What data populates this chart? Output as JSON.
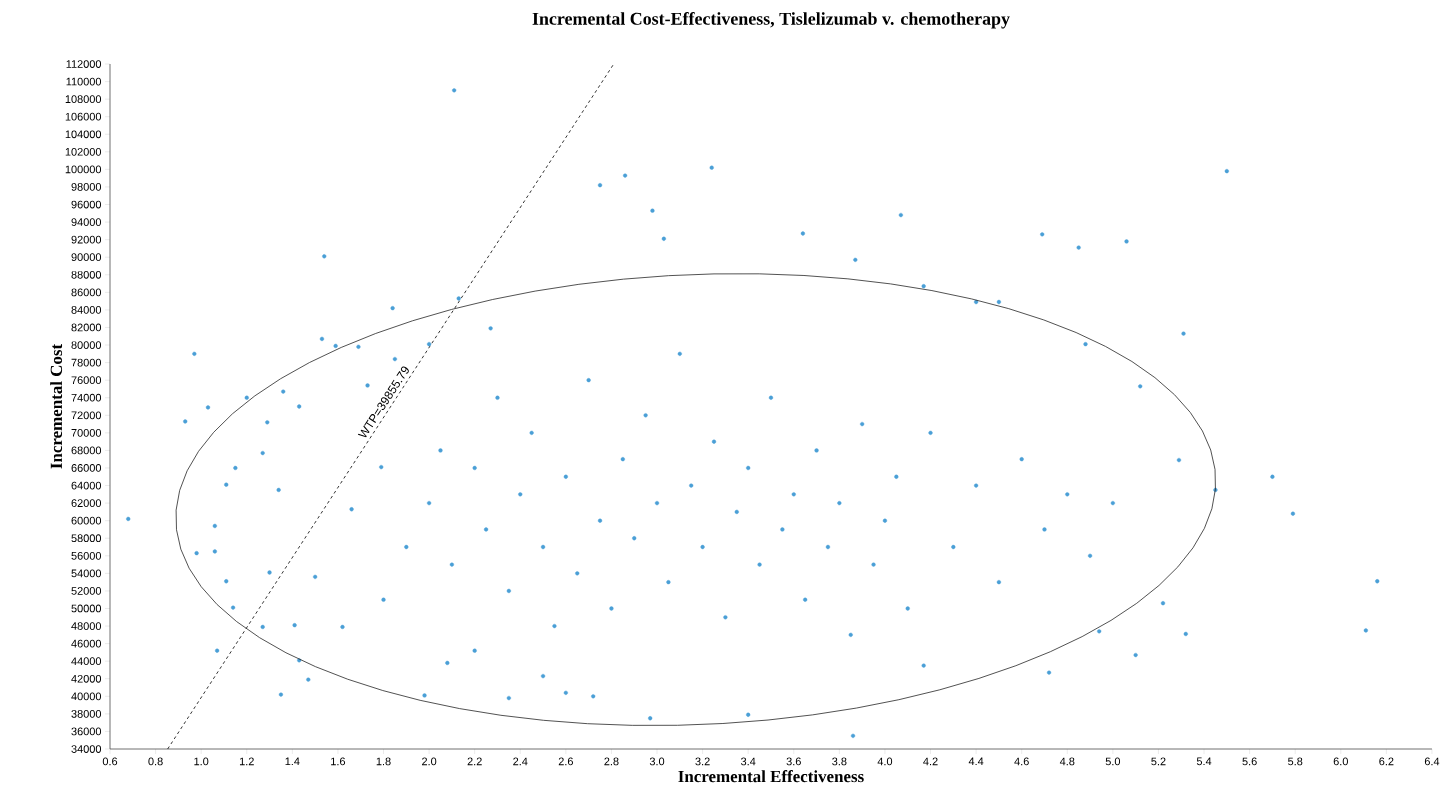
{
  "chart_data": {
    "type": "scatter",
    "title": "Incremental Cost-Effectiveness, Tislelizumab v. chemotherapy",
    "xlabel": "Incremental Effectiveness",
    "ylabel": "Incremental Cost",
    "xlim": [
      0.6,
      6.4
    ],
    "ylim": [
      34000,
      112000
    ],
    "xticks": [
      {
        "value": 0.6,
        "label": "0.6"
      },
      {
        "value": 0.8,
        "label": "0.8"
      },
      {
        "value": 1.0,
        "label": "1.0"
      },
      {
        "value": 1.2,
        "label": "1.2"
      },
      {
        "value": 1.4,
        "label": "1.4"
      },
      {
        "value": 1.6,
        "label": "1.6"
      },
      {
        "value": 1.8,
        "label": "1.8"
      },
      {
        "value": 2.0,
        "label": "2.0"
      },
      {
        "value": 2.2,
        "label": "2.2"
      },
      {
        "value": 2.4,
        "label": "2.4"
      },
      {
        "value": 2.6,
        "label": "2.6"
      },
      {
        "value": 2.8,
        "label": "2.8"
      },
      {
        "value": 3.0,
        "label": "3.0"
      },
      {
        "value": 3.2,
        "label": "3.2"
      },
      {
        "value": 3.4,
        "label": "3.4"
      },
      {
        "value": 3.6,
        "label": "3.6"
      },
      {
        "value": 3.8,
        "label": "3.8"
      },
      {
        "value": 4.0,
        "label": "4.0"
      },
      {
        "value": 4.2,
        "label": "4.2"
      },
      {
        "value": 4.4,
        "label": "4.4"
      },
      {
        "value": 4.6,
        "label": "4.6"
      },
      {
        "value": 4.8,
        "label": "4.8"
      },
      {
        "value": 5.0,
        "label": "5.0"
      },
      {
        "value": 5.2,
        "label": "5.2"
      },
      {
        "value": 5.4,
        "label": "5.4"
      },
      {
        "value": 5.6,
        "label": "5.6"
      },
      {
        "value": 5.8,
        "label": "5.8"
      },
      {
        "value": 6.0,
        "label": "6.0"
      },
      {
        "value": 6.2,
        "label": "6.2"
      },
      {
        "value": 6.4,
        "label": "6.4"
      }
    ],
    "yticks": [
      34000,
      36000,
      38000,
      40000,
      42000,
      44000,
      46000,
      48000,
      50000,
      52000,
      54000,
      56000,
      58000,
      60000,
      62000,
      64000,
      66000,
      68000,
      70000,
      72000,
      74000,
      76000,
      78000,
      80000,
      82000,
      84000,
      86000,
      88000,
      90000,
      92000,
      94000,
      96000,
      98000,
      100000,
      102000,
      104000,
      106000,
      108000,
      110000,
      112000
    ],
    "series": [
      {
        "color": "#4a9fd6",
        "marker": "circle",
        "x": [
          0.68,
          0.93,
          0.97,
          0.98,
          1.03,
          1.06,
          1.06,
          1.07,
          1.11,
          1.11,
          1.14,
          1.15,
          1.2,
          1.27,
          1.29,
          1.3,
          1.27,
          1.34,
          1.35,
          1.36,
          1.41,
          1.43,
          1.43,
          1.47,
          1.5,
          1.53,
          1.54,
          1.59,
          1.62,
          1.66,
          1.69,
          1.73,
          1.79,
          1.84,
          1.85,
          1.98,
          2.0,
          2.08,
          2.11,
          2.13,
          2.2,
          2.27,
          2.35,
          2.5,
          2.6,
          2.72,
          2.75,
          2.86,
          2.97,
          2.98,
          3.03,
          3.24,
          3.4,
          3.64,
          3.86,
          3.87,
          4.07,
          4.17,
          4.17,
          4.4,
          4.5,
          4.69,
          4.72,
          4.85,
          4.88,
          4.94,
          5.06,
          5.1,
          5.12,
          5.22,
          5.29,
          5.31,
          5.32,
          5.45,
          5.5,
          5.7,
          5.79,
          6.11,
          6.16,
          1.8,
          1.9,
          2.0,
          2.05,
          2.1,
          2.2,
          2.25,
          2.3,
          2.35,
          2.4,
          2.45,
          2.5,
          2.55,
          2.6,
          2.65,
          2.7,
          2.75,
          2.8,
          2.85,
          2.9,
          2.95,
          3.0,
          3.05,
          3.1,
          3.15,
          3.2,
          3.25,
          3.3,
          3.35,
          3.4,
          3.45,
          3.5,
          3.55,
          3.6,
          3.65,
          3.7,
          3.75,
          3.8,
          3.85,
          3.9,
          3.95,
          4.0,
          4.05,
          4.1,
          4.2,
          4.3,
          4.4,
          4.5,
          4.6,
          4.7,
          4.8,
          4.9,
          5.0
        ],
        "values": [
          60200,
          71300,
          79000,
          56300,
          72900,
          59400,
          56500,
          45200,
          64100,
          53100,
          50100,
          66000,
          74000,
          67700,
          71200,
          54100,
          47900,
          63500,
          40200,
          74700,
          48100,
          73000,
          44100,
          41900,
          53600,
          80700,
          90100,
          79900,
          47900,
          61300,
          79800,
          75400,
          66100,
          84200,
          78400,
          40100,
          80100,
          43800,
          109000,
          85300,
          45200,
          81900,
          39800,
          42300,
          40400,
          40000,
          98200,
          99300,
          37500,
          95300,
          92100,
          100200,
          37900,
          92700,
          35500,
          89700,
          94800,
          43500,
          86700,
          84900,
          84900,
          92600,
          42700,
          91100,
          80100,
          47400,
          91800,
          44700,
          75300,
          50600,
          66900,
          81300,
          47100,
          63500,
          99800,
          65000,
          60800,
          47500,
          53100,
          51000,
          57000,
          62000,
          68000,
          55000,
          66000,
          59000,
          74000,
          52000,
          63000,
          70000,
          57000,
          48000,
          65000,
          54000,
          76000,
          60000,
          50000,
          67000,
          58000,
          72000,
          62000,
          53000,
          79000,
          64000,
          57000,
          69000,
          49000,
          61000,
          66000,
          55000,
          74000,
          59000,
          63000,
          51000,
          68000,
          57000,
          62000,
          47000,
          71000,
          55000,
          60000,
          65000,
          50000,
          70000,
          57000,
          64000,
          53000,
          67000,
          59000,
          63000,
          56000,
          62000
        ]
      },
      {
        "type": "line",
        "color": "#000000",
        "marker": "none",
        "line_style": "dashed",
        "x": [
          0.853,
          2.81
        ],
        "values": [
          34000,
          112000
        ]
      }
    ],
    "annotations": [
      "WTP=39855.79"
    ]
  }
}
